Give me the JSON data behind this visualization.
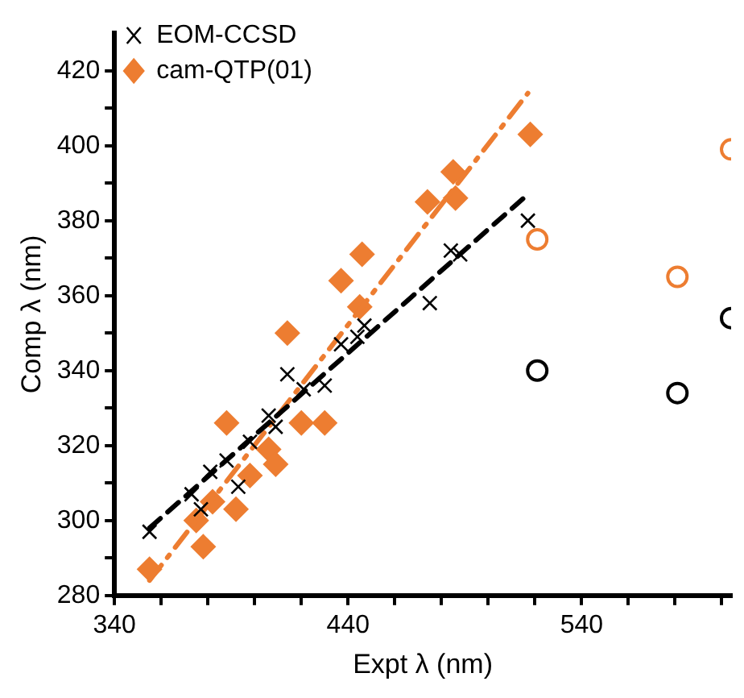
{
  "chart_data": {
    "type": "scatter",
    "xlabel": "Expt λ (nm)",
    "ylabel": "Comp λ (nm)",
    "xlim": [
      340,
      604
    ],
    "ylim": [
      280,
      430
    ],
    "xticks": [
      340,
      {
        "value": 360,
        "label": null
      },
      {
        "value": 380,
        "label": null
      },
      {
        "value": 400,
        "label": null
      },
      {
        "value": 420,
        "label": null
      },
      440,
      {
        "value": 460,
        "label": null
      },
      {
        "value": 480,
        "label": null
      },
      {
        "value": 500,
        "label": null
      },
      {
        "value": 520,
        "label": null
      },
      540,
      {
        "value": 560,
        "label": null
      },
      {
        "value": 580,
        "label": null
      },
      {
        "value": 600,
        "label": null
      }
    ],
    "yticks": [
      280,
      {
        "value": 290,
        "label": null
      },
      300,
      {
        "value": 310,
        "label": null
      },
      320,
      {
        "value": 330,
        "label": null
      },
      340,
      {
        "value": 350,
        "label": null
      },
      360,
      {
        "value": 370,
        "label": null
      },
      380,
      {
        "value": 390,
        "label": null
      },
      400,
      {
        "value": 410,
        "label": null
      },
      420
    ],
    "grid": false,
    "legend": "top left",
    "series": [
      {
        "name": "EOM-CCSD",
        "color": "#000000",
        "marker": "cross",
        "x": [
          355,
          373,
          377,
          381,
          388,
          393,
          398,
          406,
          409,
          414,
          421,
          430,
          437,
          444,
          447,
          475,
          484,
          488,
          517
        ],
        "values": [
          297,
          307,
          303,
          313,
          316,
          309,
          321,
          328,
          325,
          339,
          335,
          336,
          347,
          349,
          352,
          358,
          372,
          371,
          380
        ]
      },
      {
        "name": "cam-QTP(01)",
        "color": "#ed7d31",
        "marker": "diamond",
        "x": [
          355,
          375,
          378,
          382,
          388,
          392,
          398,
          406,
          409,
          414,
          420,
          430,
          437,
          445,
          446,
          474,
          485,
          486,
          518
        ],
        "values": [
          287,
          300,
          293,
          305,
          326,
          303,
          312,
          319,
          315,
          350,
          326,
          326,
          364,
          357,
          371,
          385,
          393,
          386,
          403
        ]
      },
      {
        "color": "#000000",
        "marker": "circle",
        "x": [
          521,
          581,
          604
        ],
        "values": [
          340,
          334,
          354
        ]
      },
      {
        "color": "#ed7d31",
        "marker": "circle",
        "x": [
          521,
          581,
          604
        ],
        "values": [
          375,
          365,
          399
        ]
      },
      {
        "type": "line",
        "color": "#000000",
        "line_style": "dashed",
        "marker": "none",
        "x": [
          355,
          517
        ],
        "values": [
          298,
          387
        ]
      },
      {
        "type": "line",
        "color": "#ed7d31",
        "line_style": "dotted",
        "marker": "none",
        "x": [
          355,
          517
        ],
        "values": [
          284,
          414
        ]
      }
    ]
  }
}
